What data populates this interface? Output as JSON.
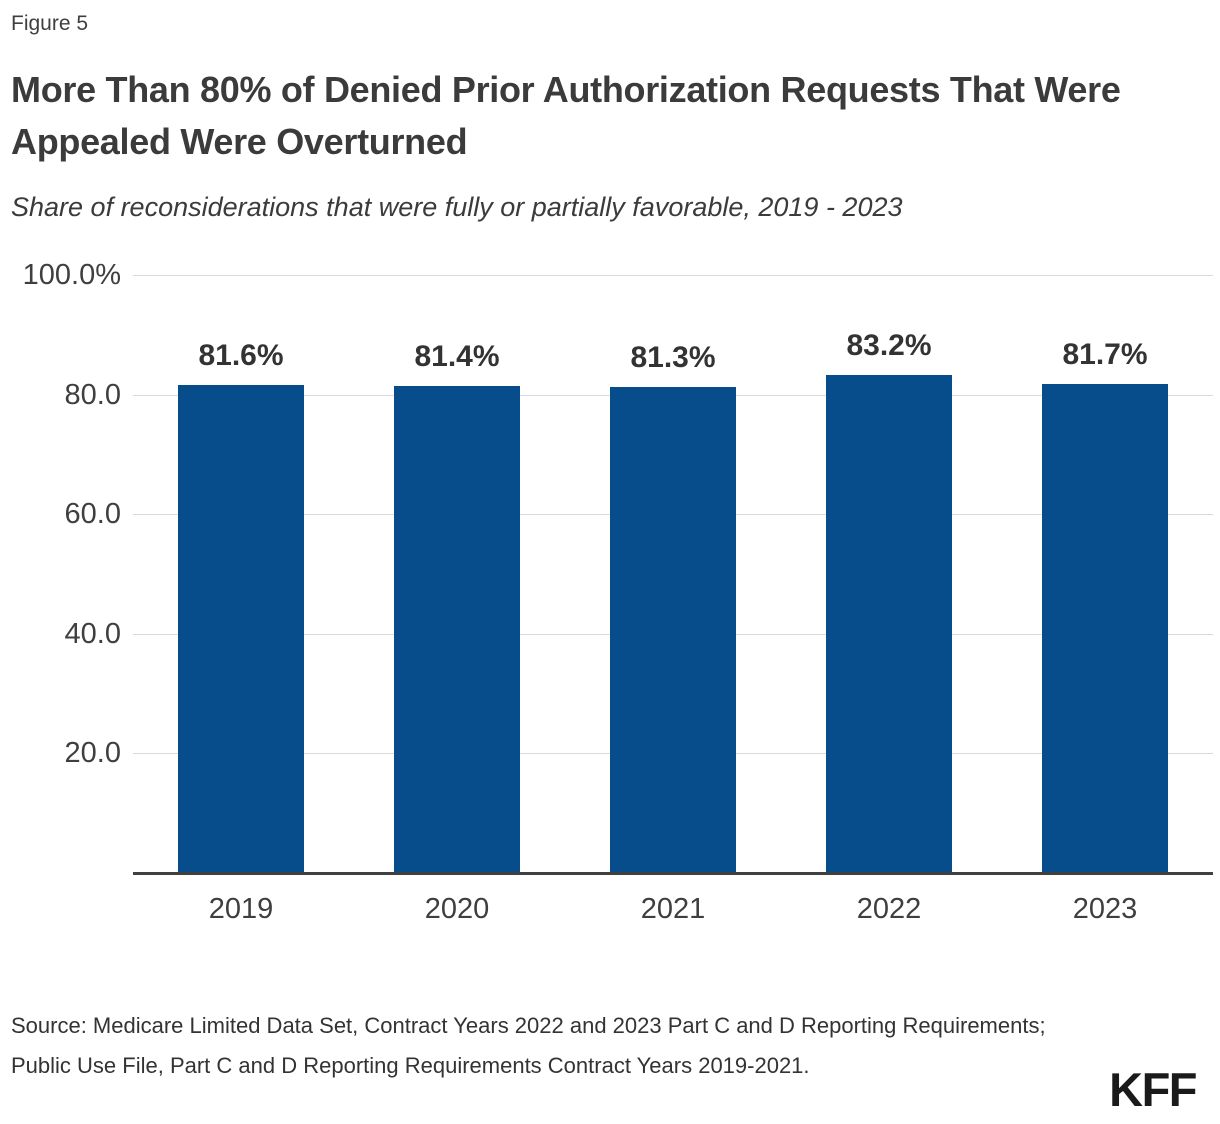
{
  "figure_label": "Figure 5",
  "title": "More Than 80% of Denied Prior Authorization Requests That Were Appealed Were Overturned",
  "subtitle": "Share of reconsiderations that were fully or partially favorable, 2019 - 2023",
  "chart_data": {
    "type": "bar",
    "title": "More Than 80% of Denied Prior Authorization Requests That Were Appealed Were Overturned",
    "subtitle": "Share of reconsiderations that were fully or partially favorable, 2019 - 2023",
    "categories": [
      "2019",
      "2020",
      "2021",
      "2022",
      "2023"
    ],
    "values": [
      81.6,
      81.4,
      81.3,
      83.2,
      81.7
    ],
    "value_labels": [
      "81.6%",
      "81.4%",
      "81.3%",
      "83.2%",
      "81.7%"
    ],
    "xlabel": "",
    "ylabel": "",
    "ylim": [
      0,
      100
    ],
    "grid": true,
    "legend": "none",
    "y_ticks": [
      {
        "value": 100,
        "label": "100.0%"
      },
      {
        "value": 80,
        "label": "80.0"
      },
      {
        "value": 60,
        "label": "60.0"
      },
      {
        "value": 40,
        "label": "40.0"
      },
      {
        "value": 20,
        "label": "20.0"
      }
    ]
  },
  "colors": {
    "bar": "#084d8b",
    "grid": "#d9d9d9",
    "axis": "#404040",
    "text": "#3b3b3b"
  },
  "source": "Source: Medicare Limited Data Set, Contract Years 2022 and 2023 Part C and D Reporting Requirements; Public Use File, Part C and D Reporting Requirements Contract Years 2019-2021.",
  "logo": "KFF"
}
